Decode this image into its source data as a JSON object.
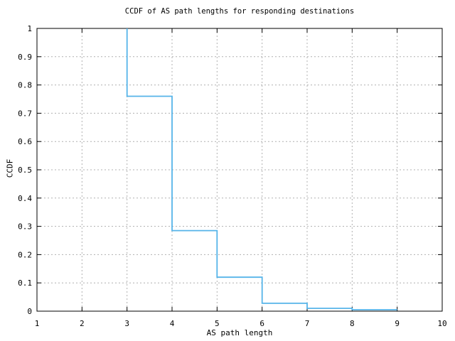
{
  "colors": {
    "background": "#ffffff",
    "axis": "#000000",
    "grid": "#b0b0b0",
    "line": "#56b4e9"
  },
  "chart_data": {
    "type": "line",
    "style": "steps",
    "title": "CCDF of AS path lengths for responding destinations",
    "xlabel": "AS path length",
    "ylabel": "CCDF",
    "xlim": [
      1,
      10
    ],
    "ylim": [
      0,
      1
    ],
    "grid": true,
    "legend": "none",
    "xticks": {
      "values": [
        1,
        2,
        3,
        4,
        5,
        6,
        7,
        8,
        9,
        10
      ],
      "labels": [
        "1",
        "2",
        "3",
        "4",
        "5",
        "6",
        "7",
        "8",
        "9",
        "10"
      ]
    },
    "yticks": {
      "values": [
        0,
        0.1,
        0.2,
        0.3,
        0.4,
        0.5,
        0.6,
        0.7,
        0.8,
        0.9,
        1
      ],
      "labels": [
        "0",
        "0.1",
        "0.2",
        "0.3",
        "0.4",
        "0.5",
        "0.6",
        "0.7",
        "0.8",
        "0.9",
        "1"
      ]
    },
    "series": [
      {
        "name": "ccdf-of-as-path-length",
        "color": "#56b4e9",
        "ccdf_levels": [
          {
            "x_start": 3,
            "x_end": 4,
            "ccdf": 0.76
          },
          {
            "x_start": 4,
            "x_end": 5,
            "ccdf": 0.285
          },
          {
            "x_start": 5,
            "x_end": 6,
            "ccdf": 0.12
          },
          {
            "x_start": 6,
            "x_end": 7,
            "ccdf": 0.028
          },
          {
            "x_start": 7,
            "x_end": 8,
            "ccdf": 0.01
          },
          {
            "x_start": 8,
            "x_end": 9,
            "ccdf": 0.005
          }
        ],
        "step_points": [
          [
            3,
            1
          ],
          [
            3,
            0.76
          ],
          [
            4,
            0.76
          ],
          [
            4,
            0.285
          ],
          [
            5,
            0.285
          ],
          [
            5,
            0.12
          ],
          [
            6,
            0.12
          ],
          [
            6,
            0.028
          ],
          [
            7,
            0.028
          ],
          [
            7,
            0.01
          ],
          [
            8,
            0.01
          ],
          [
            8,
            0.005
          ],
          [
            9,
            0.005
          ]
        ]
      }
    ]
  }
}
